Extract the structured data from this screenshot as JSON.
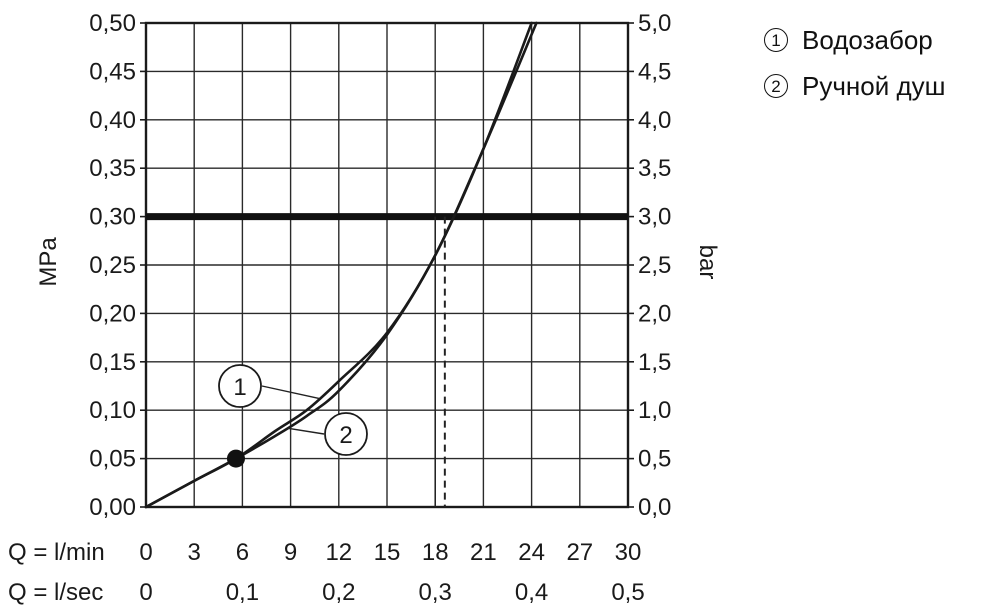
{
  "legend": [
    {
      "marker": "1",
      "label": "Водозабор"
    },
    {
      "marker": "2",
      "label": "Ручной душ"
    }
  ],
  "chart_data": {
    "type": "line",
    "xlim": [
      0,
      30
    ],
    "ylim": [
      0,
      0.5
    ],
    "grid": true,
    "legend_position": "top-right",
    "left_axis": {
      "title": "MPa",
      "ticks": [
        0,
        0.05,
        0.1,
        0.15,
        0.2,
        0.25,
        0.3,
        0.35,
        0.4,
        0.45,
        0.5
      ],
      "labels": [
        "0,00",
        "0,05",
        "0,10",
        "0,15",
        "0,20",
        "0,25",
        "0,30",
        "0,35",
        "0,40",
        "0,45",
        "0,50"
      ]
    },
    "right_axis": {
      "title": "bar",
      "labels": [
        "0,0",
        "0,5",
        "1,0",
        "1,5",
        "2,0",
        "2,5",
        "3,0",
        "3,5",
        "4,0",
        "4,5",
        "5,0"
      ]
    },
    "x_axis_lmin": {
      "prefix": "Q = l/min",
      "ticks": [
        0,
        3,
        6,
        9,
        12,
        15,
        18,
        21,
        24,
        27,
        30
      ],
      "labels": [
        "0",
        "3",
        "6",
        "9",
        "12",
        "15",
        "18",
        "21",
        "24",
        "27",
        "30"
      ]
    },
    "x_axis_lsec": {
      "prefix": "Q = l/sec",
      "ticks": [
        0,
        6,
        12,
        18,
        24,
        30
      ],
      "labels": [
        "0",
        "0,1",
        "0,2",
        "0,3",
        "0,4",
        "0,5"
      ]
    },
    "reference_line": {
      "y": 0.3
    },
    "reference_x_solid": 18,
    "reference_x_dashed": 18.6,
    "marker_point": {
      "x": 5.6,
      "y": 0.05
    },
    "series": [
      {
        "marker": "1",
        "x": [
          0,
          3,
          5.6,
          8,
          10,
          12,
          15,
          18,
          21,
          24
        ],
        "y": [
          0,
          0.027,
          0.05,
          0.078,
          0.1,
          0.13,
          0.18,
          0.26,
          0.37,
          0.5
        ]
      },
      {
        "marker": "2",
        "x": [
          0,
          3,
          5.6,
          8,
          10,
          12,
          15,
          18,
          21,
          24.3
        ],
        "y": [
          0,
          0.027,
          0.05,
          0.073,
          0.094,
          0.12,
          0.178,
          0.26,
          0.37,
          0.5
        ]
      }
    ],
    "callouts": [
      {
        "label": "1",
        "series_x": 10.8
      },
      {
        "label": "2",
        "series_x": 8.8
      }
    ]
  }
}
